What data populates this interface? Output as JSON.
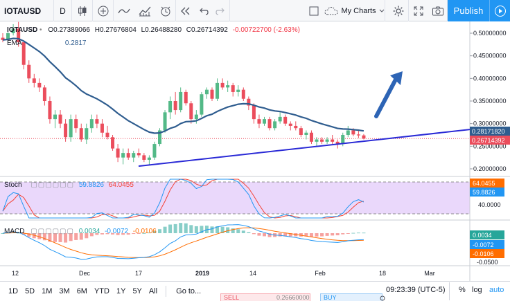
{
  "toolbar": {
    "symbol": "IOTAUSD",
    "interval": "D",
    "my_charts": "My Charts",
    "publish": "Publish",
    "icons": [
      "candles-icon",
      "add-indicator-icon",
      "line-tool-icon",
      "indicators-icon",
      "alert-icon",
      "replay-icon",
      "undo-icon",
      "redo-icon",
      "layout-icon",
      "settings-icon",
      "fullscreen-icon",
      "camera-icon",
      "play-icon"
    ]
  },
  "legend": {
    "symbol": "IOTAUSD",
    "open_label": "O",
    "open": "0.27389066",
    "high_label": "H",
    "high": "0.27676804",
    "low_label": "L",
    "low": "0.26488280",
    "close_label": "C",
    "close": "0.26714392",
    "change": "-0.00722700 (-2.63%)",
    "ma_label": "EMA",
    "ma_value": "0.2817",
    "stoch_label": "Stoch",
    "stoch_k": "59.8826",
    "stoch_d": "64.0455",
    "macd_label": "MACD",
    "macd_hist": "0.0034",
    "macd_line": "-0.0072",
    "macd_signal": "-0.0106"
  },
  "price_axis": {
    "ticks": [
      "0.50000000",
      "0.45000000",
      "0.40000000",
      "0.35000000",
      "0.30000000",
      "0.25000000",
      "0.20000000"
    ],
    "ema_badge": "0.28171820",
    "last_badge": "0.26714392"
  },
  "stoch_axis": {
    "ticks": [
      "40.0000"
    ],
    "badge_d": "64.0455",
    "badge_k": "59.8826"
  },
  "macd_axis": {
    "ticks": [
      "-0.0500"
    ],
    "badge_hist": "0.0034",
    "badge_line": "-0.0072",
    "badge_signal": "-0.0106"
  },
  "time_axis": [
    "12",
    "Dec",
    "17",
    "2019",
    "14",
    "Feb",
    "18",
    "Mar"
  ],
  "bottombar": {
    "ranges": [
      "1D",
      "5D",
      "1M",
      "3M",
      "6M",
      "YTD",
      "1Y",
      "5Y",
      "All"
    ],
    "goto": "Go to...",
    "clock": "09:23:39 (UTC-5)",
    "percent": "%",
    "log": "log",
    "auto": "auto"
  },
  "trade": {
    "sell": "SELL",
    "sell_price": "0.26660000",
    "buy": "BUY"
  },
  "colors": {
    "up": "#53b987",
    "down": "#eb4d5c",
    "ema": "#2f5d8f",
    "trend": "#2a2ad6",
    "arrow": "#2d64b5",
    "stoch_k": "#2196f3",
    "stoch_d": "#f44336",
    "macd_line": "#2196f3",
    "macd_signal": "#ff6d00",
    "accent": "#2196f3"
  },
  "chart_data": {
    "type": "candlestick",
    "symbol": "IOTAUSD",
    "timeframe": "D",
    "price_range": [
      0.18,
      0.53
    ],
    "candles": [
      [
        0.49,
        0.5,
        0.48,
        0.485
      ],
      [
        0.485,
        0.505,
        0.48,
        0.5
      ],
      [
        0.5,
        0.52,
        0.495,
        0.51
      ],
      [
        0.51,
        0.525,
        0.47,
        0.48
      ],
      [
        0.48,
        0.48,
        0.42,
        0.43
      ],
      [
        0.43,
        0.44,
        0.39,
        0.4
      ],
      [
        0.4,
        0.41,
        0.38,
        0.39
      ],
      [
        0.39,
        0.4,
        0.37,
        0.38
      ],
      [
        0.38,
        0.385,
        0.34,
        0.35
      ],
      [
        0.35,
        0.36,
        0.3,
        0.31
      ],
      [
        0.31,
        0.33,
        0.29,
        0.32
      ],
      [
        0.32,
        0.33,
        0.29,
        0.3
      ],
      [
        0.3,
        0.31,
        0.26,
        0.27
      ],
      [
        0.27,
        0.32,
        0.26,
        0.31
      ],
      [
        0.31,
        0.32,
        0.28,
        0.29
      ],
      [
        0.29,
        0.3,
        0.26,
        0.265
      ],
      [
        0.265,
        0.3,
        0.255,
        0.29
      ],
      [
        0.29,
        0.32,
        0.28,
        0.31
      ],
      [
        0.31,
        0.32,
        0.29,
        0.3
      ],
      [
        0.3,
        0.31,
        0.27,
        0.28
      ],
      [
        0.28,
        0.295,
        0.265,
        0.27
      ],
      [
        0.27,
        0.275,
        0.24,
        0.245
      ],
      [
        0.245,
        0.255,
        0.215,
        0.225
      ],
      [
        0.225,
        0.245,
        0.21,
        0.235
      ],
      [
        0.235,
        0.245,
        0.22,
        0.225
      ],
      [
        0.225,
        0.24,
        0.215,
        0.235
      ],
      [
        0.235,
        0.245,
        0.225,
        0.23
      ],
      [
        0.23,
        0.235,
        0.215,
        0.22
      ],
      [
        0.22,
        0.23,
        0.21,
        0.225
      ],
      [
        0.225,
        0.26,
        0.22,
        0.255
      ],
      [
        0.255,
        0.29,
        0.25,
        0.285
      ],
      [
        0.285,
        0.33,
        0.28,
        0.325
      ],
      [
        0.325,
        0.36,
        0.31,
        0.35
      ],
      [
        0.35,
        0.37,
        0.32,
        0.33
      ],
      [
        0.33,
        0.38,
        0.325,
        0.37
      ],
      [
        0.37,
        0.375,
        0.34,
        0.345
      ],
      [
        0.345,
        0.35,
        0.3,
        0.31
      ],
      [
        0.31,
        0.33,
        0.3,
        0.32
      ],
      [
        0.32,
        0.37,
        0.315,
        0.365
      ],
      [
        0.365,
        0.38,
        0.355,
        0.375
      ],
      [
        0.375,
        0.38,
        0.35,
        0.355
      ],
      [
        0.355,
        0.4,
        0.35,
        0.39
      ],
      [
        0.39,
        0.4,
        0.375,
        0.38
      ],
      [
        0.38,
        0.395,
        0.37,
        0.385
      ],
      [
        0.385,
        0.39,
        0.36,
        0.37
      ],
      [
        0.37,
        0.385,
        0.36,
        0.375
      ],
      [
        0.375,
        0.38,
        0.35,
        0.355
      ],
      [
        0.355,
        0.36,
        0.33,
        0.34
      ],
      [
        0.34,
        0.345,
        0.3,
        0.31
      ],
      [
        0.31,
        0.32,
        0.29,
        0.3
      ],
      [
        0.3,
        0.315,
        0.295,
        0.31
      ],
      [
        0.31,
        0.315,
        0.285,
        0.29
      ],
      [
        0.29,
        0.31,
        0.285,
        0.305
      ],
      [
        0.305,
        0.325,
        0.3,
        0.315
      ],
      [
        0.315,
        0.32,
        0.295,
        0.3
      ],
      [
        0.3,
        0.305,
        0.285,
        0.295
      ],
      [
        0.295,
        0.305,
        0.285,
        0.29
      ],
      [
        0.29,
        0.295,
        0.27,
        0.275
      ],
      [
        0.275,
        0.285,
        0.265,
        0.28
      ],
      [
        0.28,
        0.285,
        0.255,
        0.26
      ],
      [
        0.26,
        0.27,
        0.25,
        0.265
      ],
      [
        0.265,
        0.27,
        0.255,
        0.26
      ],
      [
        0.26,
        0.27,
        0.255,
        0.265
      ],
      [
        0.265,
        0.275,
        0.255,
        0.26
      ],
      [
        0.26,
        0.265,
        0.245,
        0.255
      ],
      [
        0.255,
        0.28,
        0.25,
        0.275
      ],
      [
        0.275,
        0.295,
        0.27,
        0.285
      ],
      [
        0.285,
        0.29,
        0.272,
        0.276
      ],
      [
        0.276,
        0.285,
        0.268,
        0.274
      ],
      [
        0.274,
        0.277,
        0.265,
        0.267
      ]
    ]
  }
}
